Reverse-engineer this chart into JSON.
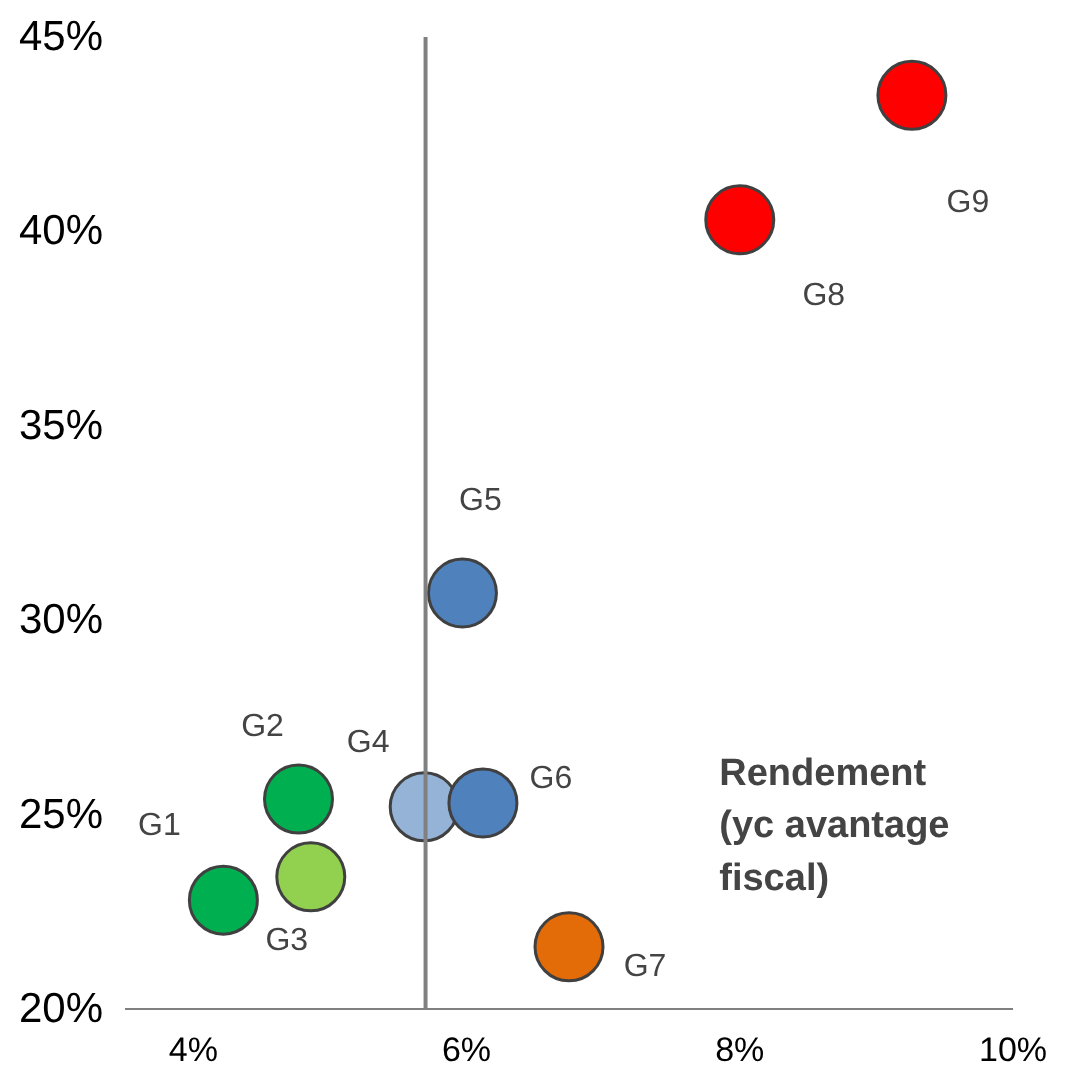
{
  "chart_data": {
    "type": "scatter",
    "annotations": [
      "Rendement\n(yc avantage\nfiscal)"
    ],
    "series": [
      {
        "name": "G1",
        "color": "#00b050",
        "x": [
          4.22
        ],
        "values": [
          22.8
        ]
      },
      {
        "name": "G2",
        "color": "#00b050",
        "x": [
          4.77
        ],
        "values": [
          25.4
        ]
      },
      {
        "name": "G3",
        "color": "#92d050",
        "x": [
          4.86
        ],
        "values": [
          23.4
        ]
      },
      {
        "name": "G4",
        "color": "#95b3d7",
        "x": [
          5.69
        ],
        "values": [
          25.2
        ]
      },
      {
        "name": "G5",
        "color": "#4f81bd",
        "x": [
          5.97
        ],
        "values": [
          30.7
        ]
      },
      {
        "name": "G6",
        "color": "#4f81bd",
        "x": [
          6.12
        ],
        "values": [
          25.3
        ]
      },
      {
        "name": "G7",
        "color": "#e36c09",
        "x": [
          6.75
        ],
        "values": [
          21.6
        ]
      },
      {
        "name": "G8",
        "color": "#ff0000",
        "x": [
          8.0
        ],
        "values": [
          40.3
        ]
      },
      {
        "name": "G9",
        "color": "#ff0000",
        "x": [
          9.26
        ],
        "values": [
          43.5
        ]
      }
    ],
    "xlim": [
      3.5,
      10.0
    ],
    "ylim": [
      20,
      45
    ],
    "xticks": [
      {
        "value": 4,
        "label": "4%"
      },
      {
        "value": 6,
        "label": "6%"
      },
      {
        "value": 8,
        "label": "8%"
      },
      {
        "value": 10,
        "label": "10%"
      }
    ],
    "yticks": [
      {
        "value": 20,
        "label": "20%"
      },
      {
        "value": 25,
        "label": "25%"
      },
      {
        "value": 30,
        "label": "30%"
      },
      {
        "value": 35,
        "label": "35%"
      },
      {
        "value": 40,
        "label": "40%"
      },
      {
        "value": 45,
        "label": "45%"
      }
    ],
    "ref_lines": [
      {
        "axis": "x",
        "value": 5.7,
        "color": "#808080"
      }
    ],
    "grid": false,
    "marker": "circle"
  }
}
